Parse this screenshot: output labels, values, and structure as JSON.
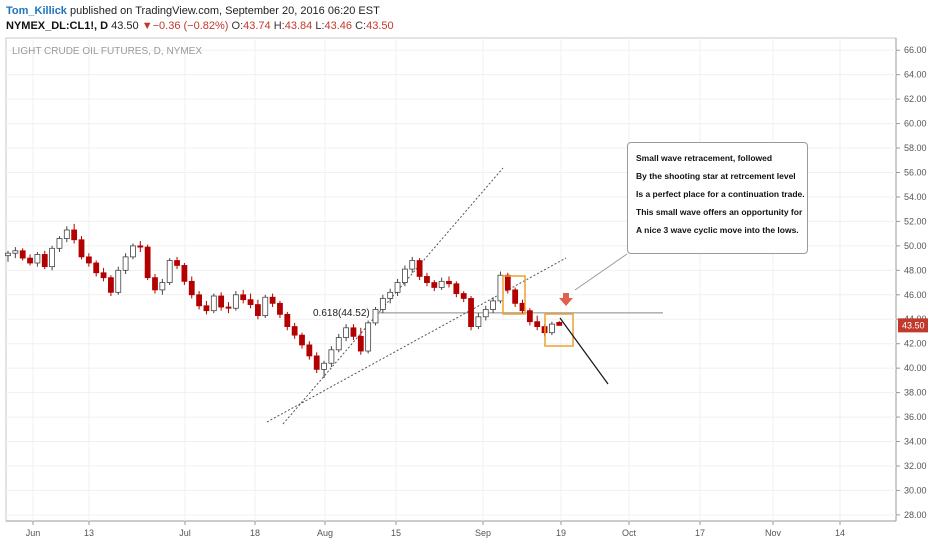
{
  "header": {
    "author": "Tom_Killick",
    "published": " published on TradingView.com, September 20, 2016 06:20 EST",
    "symbol": "NYMEX_DL:CL1!, D",
    "last": "43.50",
    "change_arrow": "▼",
    "change": "−0.36 (−0.82%)",
    "o_label": "O:",
    "o_value": "43.74",
    "h_label": "H:",
    "h_value": "43.84",
    "l_label": "L:",
    "l_value": "43.46",
    "c_label": "C:",
    "c_value": "43.50"
  },
  "colors": {
    "up_fill": "#ffffff",
    "up_border": "#444444",
    "down_fill": "#b30000",
    "highlight_box": "#f0a030",
    "arrow": "#e06050",
    "price_label_bg": "#c0392b"
  },
  "chart_data": {
    "type": "candlestick",
    "title": "LIGHT CRUDE OIL FUTURES, D, NYMEX",
    "y_ticks": [
      "28.00",
      "30.00",
      "32.00",
      "34.00",
      "36.00",
      "38.00",
      "40.00",
      "42.00",
      "44.00",
      "46.00",
      "48.00",
      "50.00",
      "52.00",
      "54.00",
      "56.00",
      "58.00",
      "60.00",
      "62.00",
      "64.00",
      "66.00"
    ],
    "ylim": [
      27.5,
      67
    ],
    "x_ticks": [
      "Jun",
      "13",
      "Jul",
      "18",
      "Aug",
      "15",
      "Sep",
      "19",
      "Oct",
      "17",
      "Nov",
      "14"
    ],
    "grid": true,
    "last_price_label": "43.50",
    "fib_label": "0.618(44.52)",
    "fib_level": 44.52,
    "candles": [
      {
        "o": 49.2,
        "h": 49.6,
        "l": 48.7,
        "c": 49.4
      },
      {
        "o": 49.4,
        "h": 49.9,
        "l": 49.0,
        "c": 49.6
      },
      {
        "o": 49.6,
        "h": 49.8,
        "l": 48.8,
        "c": 49.0
      },
      {
        "o": 49.0,
        "h": 49.3,
        "l": 48.4,
        "c": 48.6
      },
      {
        "o": 48.6,
        "h": 49.5,
        "l": 48.3,
        "c": 49.3
      },
      {
        "o": 49.3,
        "h": 49.6,
        "l": 48.1,
        "c": 48.3
      },
      {
        "o": 48.3,
        "h": 50.0,
        "l": 48.0,
        "c": 49.8
      },
      {
        "o": 49.8,
        "h": 50.8,
        "l": 49.5,
        "c": 50.6
      },
      {
        "o": 50.6,
        "h": 51.6,
        "l": 50.3,
        "c": 51.3
      },
      {
        "o": 51.3,
        "h": 51.8,
        "l": 50.2,
        "c": 50.5
      },
      {
        "o": 50.5,
        "h": 50.8,
        "l": 48.9,
        "c": 49.1
      },
      {
        "o": 49.1,
        "h": 49.4,
        "l": 48.3,
        "c": 48.6
      },
      {
        "o": 48.6,
        "h": 48.8,
        "l": 47.5,
        "c": 47.8
      },
      {
        "o": 47.8,
        "h": 48.2,
        "l": 47.1,
        "c": 47.4
      },
      {
        "o": 47.4,
        "h": 47.6,
        "l": 45.9,
        "c": 46.2
      },
      {
        "o": 46.2,
        "h": 48.3,
        "l": 46.0,
        "c": 48.0
      },
      {
        "o": 48.0,
        "h": 49.4,
        "l": 47.7,
        "c": 49.1
      },
      {
        "o": 49.1,
        "h": 50.2,
        "l": 48.9,
        "c": 50.0
      },
      {
        "o": 50.0,
        "h": 50.4,
        "l": 49.5,
        "c": 49.9
      },
      {
        "o": 49.9,
        "h": 50.1,
        "l": 47.2,
        "c": 47.4
      },
      {
        "o": 47.4,
        "h": 47.7,
        "l": 46.1,
        "c": 46.4
      },
      {
        "o": 46.4,
        "h": 47.3,
        "l": 46.0,
        "c": 47.0
      },
      {
        "o": 47.0,
        "h": 49.0,
        "l": 46.8,
        "c": 48.8
      },
      {
        "o": 48.8,
        "h": 49.1,
        "l": 48.1,
        "c": 48.4
      },
      {
        "o": 48.4,
        "h": 48.6,
        "l": 46.8,
        "c": 47.1
      },
      {
        "o": 47.1,
        "h": 47.5,
        "l": 45.7,
        "c": 46.0
      },
      {
        "o": 46.0,
        "h": 46.3,
        "l": 44.8,
        "c": 45.1
      },
      {
        "o": 45.1,
        "h": 45.5,
        "l": 44.4,
        "c": 44.7
      },
      {
        "o": 44.7,
        "h": 46.1,
        "l": 44.5,
        "c": 45.9
      },
      {
        "o": 45.9,
        "h": 46.2,
        "l": 44.7,
        "c": 45.0
      },
      {
        "o": 45.0,
        "h": 45.4,
        "l": 44.5,
        "c": 44.9
      },
      {
        "o": 44.9,
        "h": 46.3,
        "l": 44.7,
        "c": 46.0
      },
      {
        "o": 46.0,
        "h": 46.4,
        "l": 45.3,
        "c": 45.6
      },
      {
        "o": 45.6,
        "h": 46.1,
        "l": 44.9,
        "c": 45.2
      },
      {
        "o": 45.2,
        "h": 45.6,
        "l": 44.0,
        "c": 44.3
      },
      {
        "o": 44.3,
        "h": 46.0,
        "l": 44.1,
        "c": 45.8
      },
      {
        "o": 45.8,
        "h": 46.1,
        "l": 45.0,
        "c": 45.3
      },
      {
        "o": 45.3,
        "h": 45.5,
        "l": 44.1,
        "c": 44.4
      },
      {
        "o": 44.4,
        "h": 44.6,
        "l": 43.1,
        "c": 43.4
      },
      {
        "o": 43.4,
        "h": 43.7,
        "l": 42.4,
        "c": 42.7
      },
      {
        "o": 42.7,
        "h": 42.9,
        "l": 41.6,
        "c": 41.9
      },
      {
        "o": 41.9,
        "h": 42.2,
        "l": 40.7,
        "c": 41.0
      },
      {
        "o": 41.0,
        "h": 41.3,
        "l": 39.6,
        "c": 39.9
      },
      {
        "o": 39.9,
        "h": 40.6,
        "l": 39.2,
        "c": 40.4
      },
      {
        "o": 40.4,
        "h": 41.8,
        "l": 40.1,
        "c": 41.5
      },
      {
        "o": 41.5,
        "h": 42.8,
        "l": 41.3,
        "c": 42.5
      },
      {
        "o": 42.5,
        "h": 43.6,
        "l": 42.2,
        "c": 43.3
      },
      {
        "o": 43.3,
        "h": 43.6,
        "l": 42.3,
        "c": 42.6
      },
      {
        "o": 42.6,
        "h": 43.3,
        "l": 41.1,
        "c": 41.4
      },
      {
        "o": 41.4,
        "h": 43.9,
        "l": 41.2,
        "c": 43.7
      },
      {
        "o": 43.7,
        "h": 45.0,
        "l": 43.5,
        "c": 44.8
      },
      {
        "o": 44.8,
        "h": 46.0,
        "l": 44.5,
        "c": 45.7
      },
      {
        "o": 45.7,
        "h": 46.5,
        "l": 45.3,
        "c": 46.2
      },
      {
        "o": 46.2,
        "h": 47.3,
        "l": 45.9,
        "c": 47.0
      },
      {
        "o": 47.0,
        "h": 48.4,
        "l": 46.7,
        "c": 48.1
      },
      {
        "o": 48.1,
        "h": 49.1,
        "l": 47.8,
        "c": 48.8
      },
      {
        "o": 48.8,
        "h": 49.0,
        "l": 47.2,
        "c": 47.5
      },
      {
        "o": 47.5,
        "h": 47.8,
        "l": 46.7,
        "c": 47.0
      },
      {
        "o": 47.0,
        "h": 47.2,
        "l": 46.3,
        "c": 46.6
      },
      {
        "o": 46.6,
        "h": 47.4,
        "l": 46.4,
        "c": 47.1
      },
      {
        "o": 47.1,
        "h": 47.5,
        "l": 46.6,
        "c": 46.9
      },
      {
        "o": 46.9,
        "h": 47.1,
        "l": 45.8,
        "c": 46.1
      },
      {
        "o": 46.1,
        "h": 46.3,
        "l": 45.4,
        "c": 45.7
      },
      {
        "o": 45.7,
        "h": 45.9,
        "l": 43.1,
        "c": 43.4
      },
      {
        "o": 43.4,
        "h": 44.5,
        "l": 43.2,
        "c": 44.2
      },
      {
        "o": 44.2,
        "h": 45.1,
        "l": 43.9,
        "c": 44.8
      },
      {
        "o": 44.8,
        "h": 45.8,
        "l": 44.5,
        "c": 45.5
      },
      {
        "o": 45.5,
        "h": 47.9,
        "l": 45.3,
        "c": 47.6
      },
      {
        "o": 47.6,
        "h": 47.8,
        "l": 46.1,
        "c": 46.4
      },
      {
        "o": 46.4,
        "h": 46.6,
        "l": 45.0,
        "c": 45.3
      },
      {
        "o": 45.3,
        "h": 45.6,
        "l": 44.4,
        "c": 44.7
      },
      {
        "o": 44.7,
        "h": 44.9,
        "l": 43.5,
        "c": 43.8
      },
      {
        "o": 43.8,
        "h": 44.3,
        "l": 43.1,
        "c": 43.4
      },
      {
        "o": 43.4,
        "h": 43.6,
        "l": 42.6,
        "c": 42.9
      },
      {
        "o": 42.9,
        "h": 43.8,
        "l": 42.7,
        "c": 43.6
      },
      {
        "o": 43.74,
        "h": 43.84,
        "l": 43.46,
        "c": 43.5
      }
    ],
    "annotations": [
      {
        "type": "ray",
        "name": "channel-upper-line",
        "points": [
          [
            36.0,
            0
          ],
          [
            57.0,
            0
          ]
        ]
      },
      {
        "type": "ray",
        "name": "channel-lower-line",
        "points": [
          [
            36.5,
            0
          ],
          [
            49.5,
            0
          ]
        ]
      }
    ],
    "callout": [
      "Small wave retracement, followed",
      "By the shooting star at retrcement level",
      "Is a perfect place for a continuation trade.",
      "This small wave offers an opportunity for",
      "A nice 3 wave cyclic move into the lows."
    ]
  }
}
